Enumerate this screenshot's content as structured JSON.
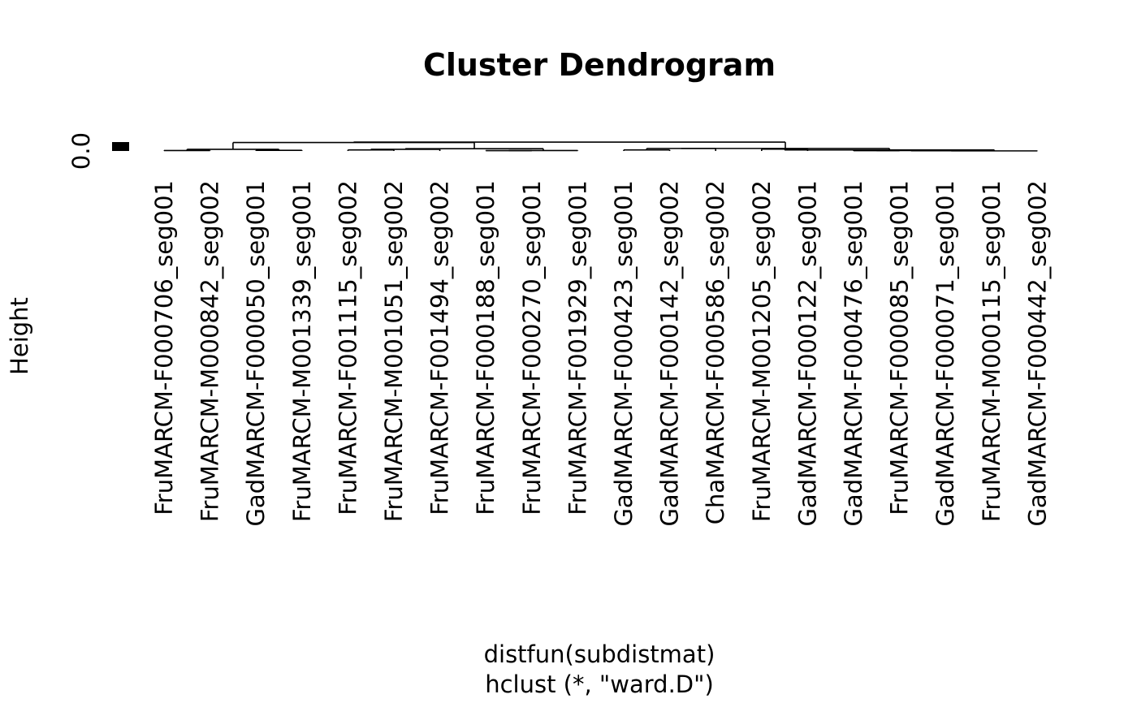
{
  "chart_data": {
    "type": "dendrogram",
    "title": "Cluster Dendrogram",
    "ylabel": "Height",
    "xlabel": "distfun(subdistmat)",
    "sub": "hclust (*, \"ward.D\")",
    "yticks": [
      "0.0"
    ],
    "leaves": [
      "FruMARCM-F000706_seg001",
      "FruMARCM-M000842_seg002",
      "GadMARCM-F000050_seg001",
      "FruMARCM-M001339_seg001",
      "FruMARCM-F001115_seg002",
      "FruMARCM-M001051_seg002",
      "FruMARCM-F001494_seg002",
      "FruMARCM-F000188_seg001",
      "FruMARCM-F000270_seg001",
      "FruMARCM-F001929_seg001",
      "GadMARCM-F000423_seg001",
      "GadMARCM-F000142_seg002",
      "ChaMARCM-F000586_seg002",
      "FruMARCM-M001205_seg002",
      "GadMARCM-F000122_seg001",
      "GadMARCM-F000476_seg001",
      "FruMARCM-F000085_seg001",
      "GadMARCM-F000071_seg001",
      "FruMARCM-M000115_seg001",
      "GadMARCM-F000442_seg002"
    ],
    "merges": [
      {
        "a": 0,
        "b": 1,
        "h": 0.02
      },
      {
        "a": 2,
        "b": 3,
        "h": 0.03
      },
      {
        "a": "n0",
        "b": "n1",
        "h": 0.08
      },
      {
        "a": 4,
        "b": 5,
        "h": 0.05
      },
      {
        "a": "n3",
        "b": 6,
        "h": 0.08
      },
      {
        "a": 7,
        "b": 8,
        "h": 0.015
      },
      {
        "a": "n5",
        "b": 9,
        "h": 0.02
      },
      {
        "a": "n4",
        "b": "n6",
        "h": 0.11
      },
      {
        "a": "n2",
        "b": "n7",
        "h": 0.4
      },
      {
        "a": 10,
        "b": 11,
        "h": 0.05
      },
      {
        "a": "n9",
        "b": 12,
        "h": 0.12
      },
      {
        "a": 13,
        "b": 14,
        "h": 0.09
      },
      {
        "a": 15,
        "b": 16,
        "h": 0.015
      },
      {
        "a": "n12",
        "b": 17,
        "h": 0.02
      },
      {
        "a": "n13",
        "b": 18,
        "h": 0.01
      },
      {
        "a": "n14",
        "b": 19,
        "h": 0.005
      },
      {
        "a": "n11",
        "b": "n15",
        "h": 0.05
      },
      {
        "a": "n10",
        "b": "n16",
        "h": 0.12
      },
      {
        "a": "n8",
        "b": "n17",
        "h": 0.42
      }
    ]
  }
}
